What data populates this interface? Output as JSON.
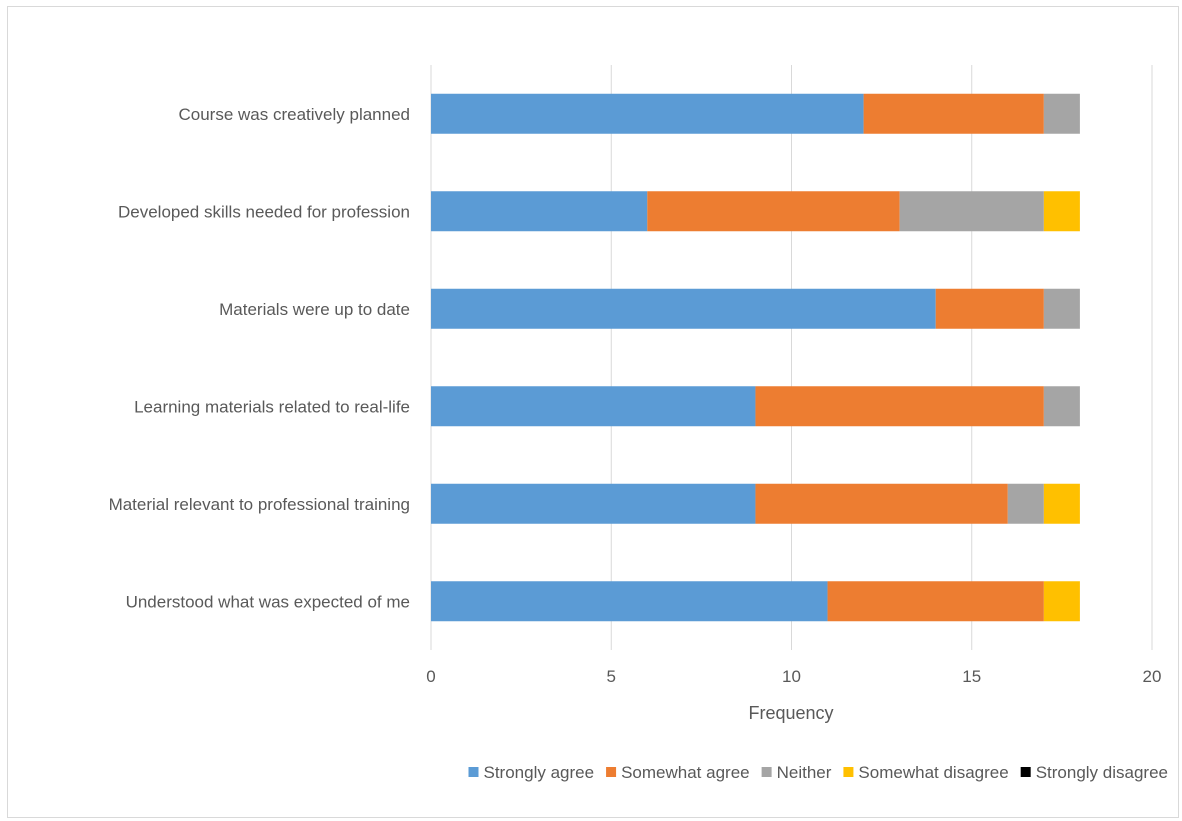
{
  "chart_data": {
    "type": "bar",
    "orientation": "horizontal",
    "stacked": true,
    "title": "",
    "xlabel": "Frequency",
    "ylabel": "",
    "xlim": [
      0,
      20
    ],
    "xticks": [
      0,
      5,
      10,
      15,
      20
    ],
    "grid": "vertical",
    "legend_position": "bottom",
    "categories": [
      "Course was creatively planned",
      "Developed skills needed for profession",
      "Materials were up to date",
      "Learning materials related to real-life",
      "Material relevant to professional training",
      "Understood what was expected of me"
    ],
    "series": [
      {
        "name": "Strongly agree",
        "color": "#5b9bd5",
        "values": [
          12,
          6,
          14,
          9,
          9,
          11
        ]
      },
      {
        "name": "Somewhat agree",
        "color": "#ed7d31",
        "values": [
          5,
          7,
          3,
          8,
          7,
          6
        ]
      },
      {
        "name": "Neither",
        "color": "#a5a5a5",
        "values": [
          1,
          4,
          1,
          1,
          1,
          0
        ]
      },
      {
        "name": "Somewhat disagree",
        "color": "#ffc000",
        "values": [
          0,
          1,
          0,
          0,
          1,
          1
        ]
      },
      {
        "name": "Strongly disagree",
        "color": "#000000",
        "values": [
          0,
          0,
          0,
          0,
          0,
          0
        ]
      }
    ]
  }
}
